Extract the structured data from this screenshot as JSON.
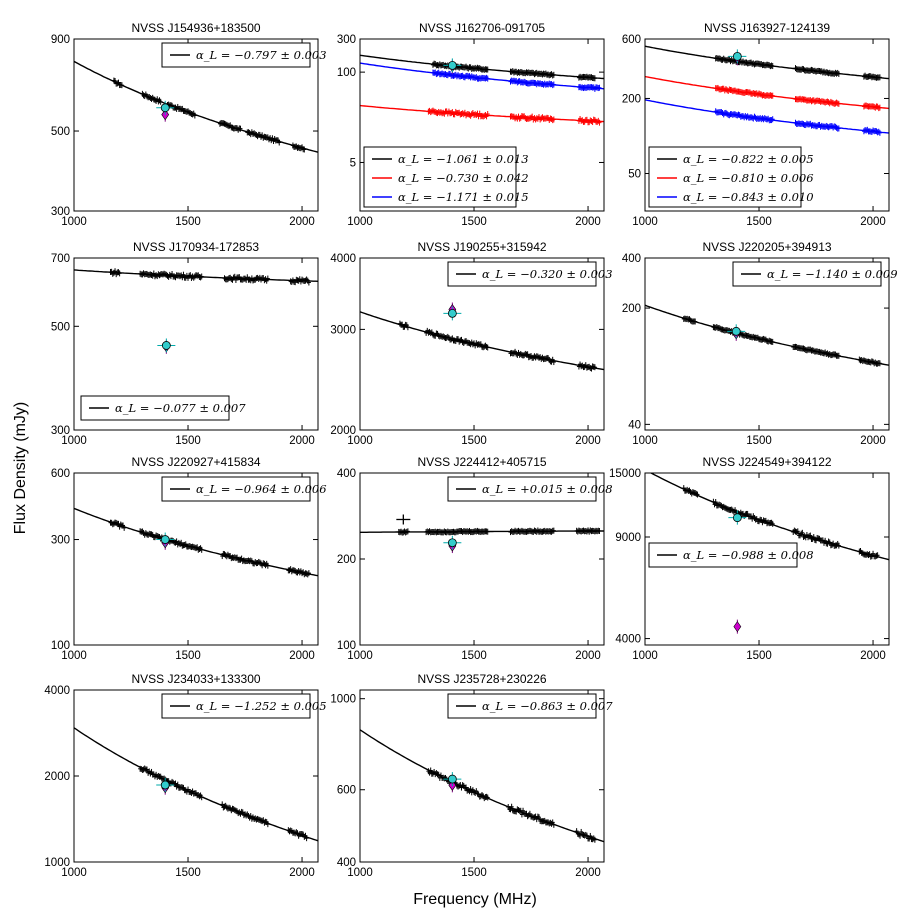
{
  "figure": {
    "xlabel": "Frequency (MHz)",
    "ylabel": "Flux Density (mJy)"
  },
  "chart_data": [
    {
      "type": "line",
      "title": "NVSS J154936+183500",
      "xlim": [
        1000,
        2070
      ],
      "ylim": [
        300,
        900
      ],
      "xticks": [
        1000,
        1500,
        2000
      ],
      "xtick_labels": [
        "1000",
        "1500",
        "2000"
      ],
      "yticks": [
        300,
        500,
        900
      ],
      "ytick_labels": [
        "300",
        "500",
        "900"
      ],
      "series": [
        {
          "name": "α_L = −0.797 ± 0.003",
          "color": "#000000",
          "alpha": -0.797,
          "ref": 1000,
          "amp": 780,
          "segments": [
            [
              1175,
              1210
            ],
            [
              1300,
              1380
            ],
            [
              1410,
              1530
            ],
            [
              1640,
              1730
            ],
            [
              1760,
              1900
            ],
            [
              1960,
              2010
            ]
          ],
          "scatter": 0.008
        }
      ],
      "nvss": {
        "x": 1400,
        "y": 580,
        "marker": "circle"
      },
      "alt": {
        "x": 1400,
        "y": 555,
        "marker": "diamond"
      }
    },
    {
      "type": "line",
      "title": "NVSS J162706-091705",
      "xlim": [
        1000,
        2070
      ],
      "ylim": [
        1,
        300
      ],
      "xticks": [
        1000,
        1500,
        2000
      ],
      "xtick_labels": [
        "1000",
        "1500",
        "2000"
      ],
      "yticks": [
        5,
        100,
        300
      ],
      "ytick_labels": [
        "5",
        "100",
        "300"
      ],
      "series": [
        {
          "name": "α_L = −1.061 ± 0.013",
          "color": "#000000",
          "alpha": -1.061,
          "ref": 1000,
          "amp": 175,
          "segments": [
            [
              1320,
              1560
            ],
            [
              1660,
              1850
            ],
            [
              1960,
              2030
            ]
          ],
          "scatter": 0.03
        },
        {
          "name": "α_L = −0.730 ± 0.042",
          "color": "#ff0000",
          "alpha": -0.73,
          "ref": 1000,
          "amp": 33,
          "segments": [
            [
              1300,
              1560
            ],
            [
              1660,
              1850
            ],
            [
              1960,
              2050
            ]
          ],
          "scatter": 0.05
        },
        {
          "name": "α_L = −1.171 ± 0.015",
          "color": "#0000ff",
          "alpha": -1.171,
          "ref": 1000,
          "amp": 135,
          "segments": [
            [
              1320,
              1560
            ],
            [
              1660,
              1850
            ],
            [
              1960,
              2050
            ]
          ],
          "scatter": 0.03
        }
      ],
      "nvss": {
        "x": 1405,
        "y": 125,
        "marker": "circle"
      },
      "alt": {
        "x": 1405,
        "y": 120,
        "marker": "diamond"
      }
    },
    {
      "type": "line",
      "title": "NVSS J163927-124139",
      "xlim": [
        1000,
        2070
      ],
      "ylim": [
        25,
        600
      ],
      "xticks": [
        1000,
        1500,
        2000
      ],
      "xtick_labels": [
        "1000",
        "1500",
        "2000"
      ],
      "yticks": [
        50,
        200,
        600
      ],
      "ytick_labels": [
        "50",
        "200",
        "600"
      ],
      "series": [
        {
          "name": "α_L = −0.822 ± 0.005",
          "color": "#000000",
          "alpha": -0.822,
          "ref": 1000,
          "amp": 525,
          "segments": [
            [
              1310,
              1560
            ],
            [
              1660,
              1850
            ],
            [
              1960,
              2030
            ]
          ],
          "scatter": 0.015
        },
        {
          "name": "α_L = −0.810 ± 0.006",
          "color": "#ff0000",
          "alpha": -0.81,
          "ref": 1000,
          "amp": 300,
          "segments": [
            [
              1310,
              1560
            ],
            [
              1660,
              1850
            ],
            [
              1960,
              2030
            ]
          ],
          "scatter": 0.015
        },
        {
          "name": "α_L = −0.843 ± 0.010",
          "color": "#0000ff",
          "alpha": -0.843,
          "ref": 1000,
          "amp": 195,
          "segments": [
            [
              1310,
              1560
            ],
            [
              1660,
              1850
            ],
            [
              1960,
              2030
            ]
          ],
          "scatter": 0.02
        }
      ],
      "nvss": {
        "x": 1405,
        "y": 435,
        "marker": "circle"
      },
      "alt": {
        "x": 1405,
        "y": 420,
        "marker": "diamond"
      }
    },
    {
      "type": "line",
      "title": "NVSS J170934-172853",
      "xlim": [
        1000,
        2070
      ],
      "ylim": [
        300,
        700
      ],
      "xticks": [
        1000,
        1500,
        2000
      ],
      "xtick_labels": [
        "1000",
        "1500",
        "2000"
      ],
      "yticks": [
        300,
        500,
        700
      ],
      "ytick_labels": [
        "300",
        "500",
        "700"
      ],
      "series": [
        {
          "name": "α_L = −0.077 ± 0.007",
          "color": "#000000",
          "alpha": -0.077,
          "ref": 1000,
          "amp": 660,
          "segments": [
            [
              1160,
              1200
            ],
            [
              1290,
              1560
            ],
            [
              1660,
              1850
            ],
            [
              1950,
              2030
            ]
          ],
          "scatter": 0.008
        }
      ],
      "nvss": {
        "x": 1405,
        "y": 455,
        "marker": "circle"
      },
      "alt": {
        "x": 1405,
        "y": 452,
        "marker": "diamond"
      }
    },
    {
      "type": "line",
      "title": "NVSS J190255+315942",
      "xlim": [
        1000,
        2070
      ],
      "ylim": [
        2000,
        4000
      ],
      "xticks": [
        1000,
        1500,
        2000
      ],
      "xtick_labels": [
        "1000",
        "1500",
        "2000"
      ],
      "yticks": [
        2000,
        3000,
        4000
      ],
      "ytick_labels": [
        "2000",
        "3000",
        "4000"
      ],
      "series": [
        {
          "name": "α_L = −0.320 ± 0.003",
          "color": "#000000",
          "alpha": -0.32,
          "ref": 1000,
          "amp": 3220,
          "segments": [
            [
              1175,
              1210
            ],
            [
              1290,
              1560
            ],
            [
              1660,
              1850
            ],
            [
              1960,
              2030
            ]
          ],
          "scatter": 0.006
        }
      ],
      "nvss": {
        "x": 1405,
        "y": 3200,
        "marker": "circle"
      },
      "alt": {
        "x": 1405,
        "y": 3250,
        "marker": "diamond"
      }
    },
    {
      "type": "line",
      "title": "NVSS J220205+394913",
      "xlim": [
        1000,
        2070
      ],
      "ylim": [
        37,
        400
      ],
      "xticks": [
        1000,
        1500,
        2000
      ],
      "xtick_labels": [
        "1000",
        "1500",
        "2000"
      ],
      "yticks": [
        40,
        200,
        400
      ],
      "ytick_labels": [
        "40",
        "200",
        "400"
      ],
      "series": [
        {
          "name": "α_L = −1.140 ± 0.009",
          "color": "#000000",
          "alpha": -1.14,
          "ref": 1000,
          "amp": 208,
          "segments": [
            [
              1170,
              1220
            ],
            [
              1300,
              1560
            ],
            [
              1650,
              1850
            ],
            [
              1940,
              2030
            ]
          ],
          "scatter": 0.012
        }
      ],
      "nvss": {
        "x": 1400,
        "y": 145,
        "marker": "circle"
      },
      "alt": {
        "x": 1400,
        "y": 140,
        "marker": "diamond"
      }
    },
    {
      "type": "line",
      "title": "NVSS J220927+415834",
      "xlim": [
        1000,
        2070
      ],
      "ylim": [
        100,
        600
      ],
      "xticks": [
        1000,
        1500,
        2000
      ],
      "xtick_labels": [
        "1000",
        "1500",
        "2000"
      ],
      "yticks": [
        100,
        300,
        600
      ],
      "ytick_labels": [
        "100",
        "300",
        "600"
      ],
      "series": [
        {
          "name": "α_L = −0.964 ± 0.006",
          "color": "#000000",
          "alpha": -0.964,
          "ref": 1000,
          "amp": 415,
          "segments": [
            [
              1160,
              1220
            ],
            [
              1290,
              1560
            ],
            [
              1650,
              1850
            ],
            [
              1940,
              2030
            ]
          ],
          "scatter": 0.015
        }
      ],
      "nvss": {
        "x": 1400,
        "y": 300,
        "marker": "circle"
      },
      "alt": {
        "x": 1400,
        "y": 290,
        "marker": "diamond"
      }
    },
    {
      "type": "line",
      "title": "NVSS J224412+405715",
      "xlim": [
        1000,
        2070
      ],
      "ylim": [
        100,
        400
      ],
      "xticks": [
        1000,
        1500,
        2000
      ],
      "xtick_labels": [
        "1000",
        "1500",
        "2000"
      ],
      "yticks": [
        100,
        200,
        400
      ],
      "ytick_labels": [
        "100",
        "200",
        "400"
      ],
      "series": [
        {
          "name": "α_L = +0.015 ± 0.008",
          "color": "#000000",
          "alpha": 0.015,
          "ref": 1000,
          "amp": 248,
          "segments": [
            [
              1170,
              1210
            ],
            [
              1290,
              1560
            ],
            [
              1660,
              1850
            ],
            [
              1950,
              2050
            ]
          ],
          "scatter": 0.006
        }
      ],
      "outlier": {
        "x": 1190,
        "y": 275
      },
      "nvss": {
        "x": 1405,
        "y": 228,
        "marker": "circle"
      },
      "alt": {
        "x": 1405,
        "y": 222,
        "marker": "diamond"
      }
    },
    {
      "type": "line",
      "title": "NVSS J224549+394122",
      "xlim": [
        1000,
        2070
      ],
      "ylim": [
        3800,
        15000
      ],
      "xticks": [
        1000,
        1500,
        2000
      ],
      "xtick_labels": [
        "1000",
        "1500",
        "2000"
      ],
      "yticks": [
        4000,
        9000,
        15000
      ],
      "ytick_labels": [
        "4000",
        "9000",
        "15000"
      ],
      "series": [
        {
          "name": "α_L = −0.988 ± 0.008",
          "color": "#000000",
          "alpha": -0.988,
          "ref": 1000,
          "amp": 15400,
          "segments": [
            [
              1170,
              1230
            ],
            [
              1300,
              1560
            ],
            [
              1650,
              1850
            ],
            [
              1940,
              2020
            ]
          ],
          "scatter": 0.015
        }
      ],
      "nvss": {
        "x": 1405,
        "y": 10500,
        "marker": "circle"
      },
      "alt": {
        "x": 1405,
        "y": 4400,
        "marker": "diamond"
      }
    },
    {
      "type": "line",
      "title": "NVSS J234033+133300",
      "xlim": [
        1000,
        2070
      ],
      "ylim": [
        1000,
        4000
      ],
      "xticks": [
        1000,
        1500,
        2000
      ],
      "xtick_labels": [
        "1000",
        "1500",
        "2000"
      ],
      "yticks": [
        1000,
        2000,
        4000
      ],
      "ytick_labels": [
        "1000",
        "2000",
        "4000"
      ],
      "series": [
        {
          "name": "α_L = −1.252 ± 0.005",
          "color": "#000000",
          "alpha": -1.252,
          "ref": 1000,
          "amp": 2950,
          "segments": [
            [
              1290,
              1560
            ],
            [
              1650,
              1850
            ],
            [
              1940,
              2020
            ]
          ],
          "scatter": 0.012
        }
      ],
      "nvss": {
        "x": 1400,
        "y": 1860,
        "marker": "circle"
      },
      "alt": {
        "x": 1400,
        "y": 1820,
        "marker": "diamond"
      }
    },
    {
      "type": "line",
      "title": "NVSS J235728+230226",
      "xlim": [
        1000,
        2070
      ],
      "ylim": [
        400,
        1050
      ],
      "xticks": [
        1000,
        1500,
        2000
      ],
      "xtick_labels": [
        "1000",
        "1500",
        "2000"
      ],
      "yticks": [
        400,
        600,
        1000
      ],
      "ytick_labels": [
        "400",
        "600",
        "1000"
      ],
      "series": [
        {
          "name": "α_L = −0.863 ± 0.007",
          "color": "#000000",
          "alpha": -0.863,
          "ref": 1000,
          "amp": 840,
          "segments": [
            [
              1300,
              1560
            ],
            [
              1650,
              1850
            ],
            [
              1950,
              2030
            ]
          ],
          "scatter": 0.012
        }
      ],
      "nvss": {
        "x": 1405,
        "y": 637,
        "marker": "circle"
      },
      "alt": {
        "x": 1405,
        "y": 615,
        "marker": "diamond"
      }
    }
  ]
}
